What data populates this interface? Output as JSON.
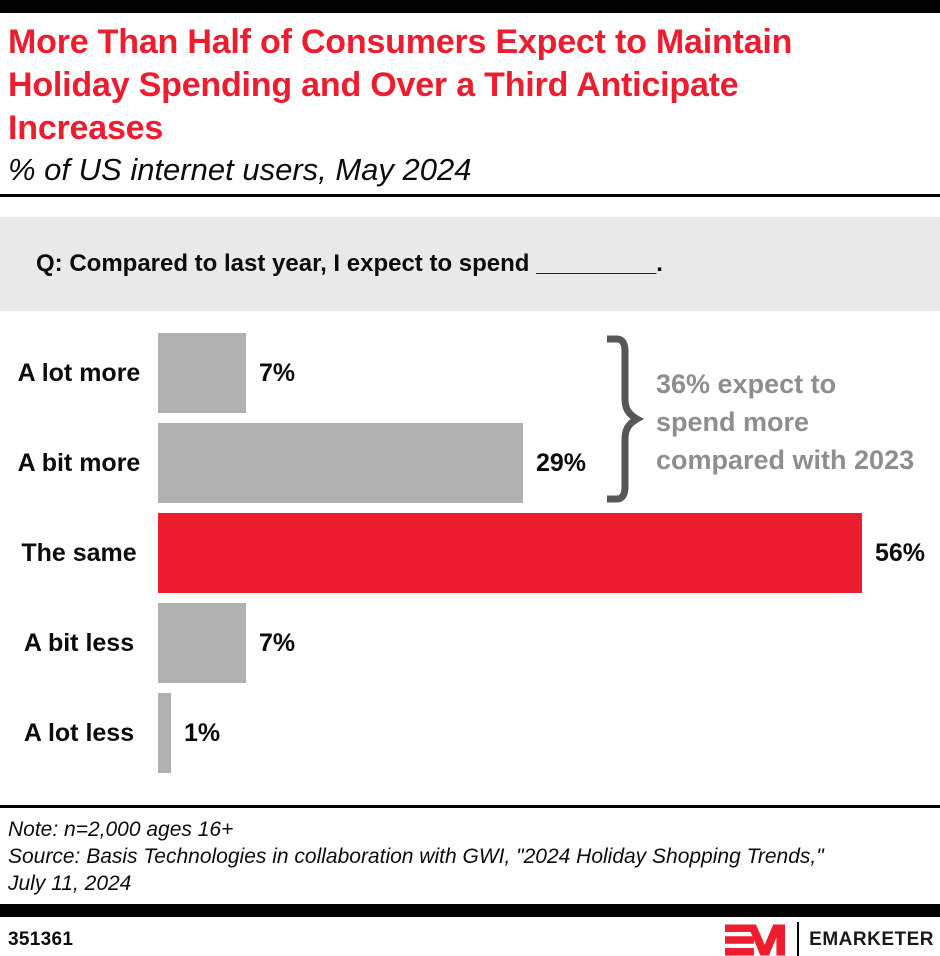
{
  "chart_data": {
    "type": "bar",
    "orientation": "horizontal",
    "title": "More Than Half of Consumers Expect to Maintain Holiday Spending and Over a Third Anticipate Increases",
    "subtitle": "% of US internet users, May 2024",
    "categories": [
      "A lot more",
      "A bit more",
      "The same",
      "A bit less",
      "A lot less"
    ],
    "values": [
      7,
      29,
      56,
      7,
      1
    ],
    "value_labels": [
      "7%",
      "29%",
      "56%",
      "7%",
      "1%"
    ],
    "unit": "%",
    "highlight_index": 2,
    "grid": false,
    "axis_labels_shown": false,
    "annotation": {
      "lines": [
        "36% expect to",
        "spend more",
        "compared with 2023"
      ],
      "applies_to": [
        "A lot more",
        "A bit more"
      ]
    }
  },
  "question": {
    "text": "Q: Compared to last year, I expect to spend _________."
  },
  "notes": {
    "note": "Note: n=2,000 ages 16+",
    "source": "Source: Basis Technologies in collaboration with GWI, \"2024 Holiday Shopping Trends,\" July 11, 2024"
  },
  "footer": {
    "chart_id": "351361",
    "brand": "EMARKETER"
  },
  "colors": {
    "accent_red": "#ed1c2e",
    "bar_gray": "#b1b1b1",
    "annotation_gray": "#8e8e90",
    "brace_gray": "#57575a",
    "question_box_bg": "#e9e9e9",
    "bar_black": "#000000"
  }
}
